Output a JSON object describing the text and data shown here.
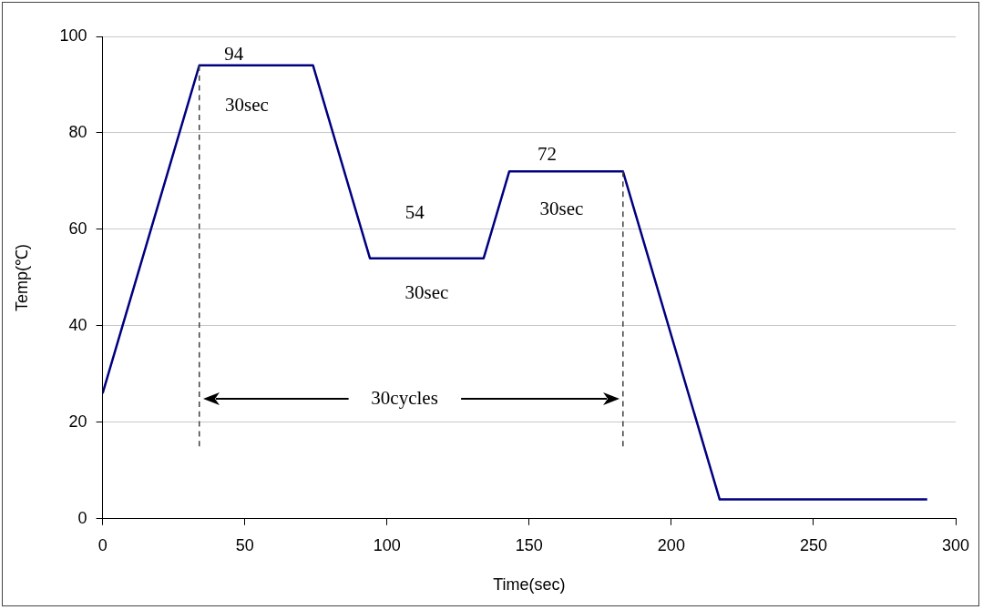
{
  "chart_data": {
    "type": "line",
    "xlabel": "Time(sec)",
    "ylabel": "Temp(℃)",
    "xlim": [
      0,
      300
    ],
    "xticks": [
      0,
      50,
      100,
      150,
      200,
      250,
      300
    ],
    "ylim": [
      0,
      100
    ],
    "yticks": [
      0,
      20,
      40,
      60,
      80,
      100
    ],
    "grid": "y",
    "marker": "none",
    "series": [
      {
        "color": "#000080",
        "x": [
          0,
          34,
          74,
          94,
          134,
          143,
          183,
          217,
          290
        ],
        "values": [
          26,
          94,
          94,
          54,
          54,
          72,
          72,
          4,
          4
        ]
      },
      {
        "color": "#404040",
        "line_style": "dashed",
        "x": [
          34,
          34
        ],
        "values": [
          15,
          94
        ]
      },
      {
        "color": "#404040",
        "line_style": "dashed",
        "x": [
          183,
          183
        ],
        "values": [
          15,
          72
        ]
      }
    ],
    "annotations": [
      "94",
      "30sec",
      "54",
      "30sec",
      "72",
      "30sec",
      "30cycles"
    ]
  }
}
